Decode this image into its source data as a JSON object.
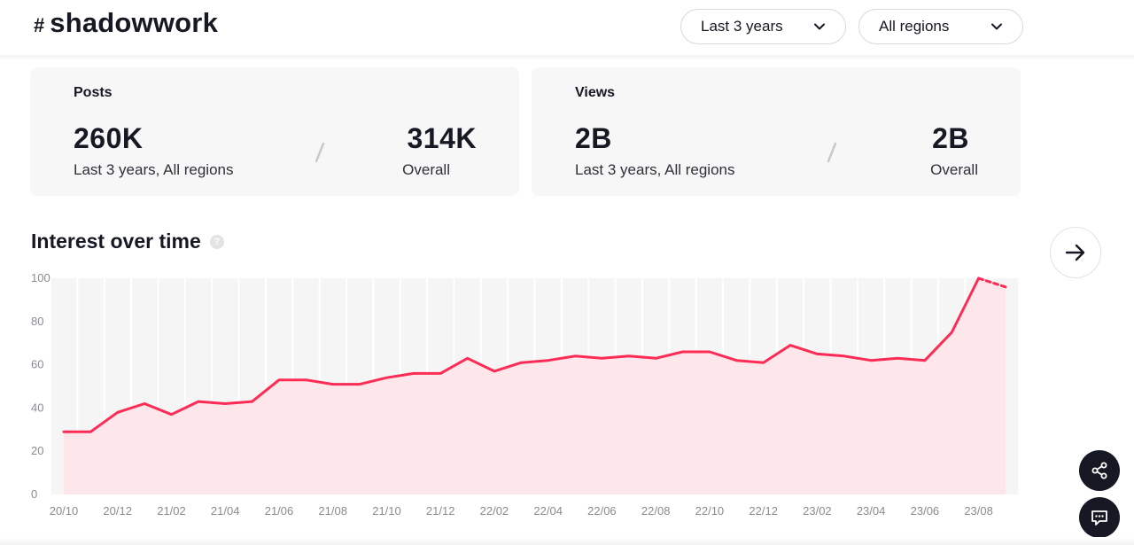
{
  "header": {
    "hash_symbol": "#",
    "hashtag": "shadowwork",
    "period_select": "Last 3 years",
    "region_select": "All regions"
  },
  "cards": {
    "posts": {
      "label": "Posts",
      "period_value": "260K",
      "period_caption": "Last 3 years, All regions",
      "overall_value": "314K",
      "overall_caption": "Overall"
    },
    "views": {
      "label": "Views",
      "period_value": "2B",
      "period_caption": "Last 3 years, All regions",
      "overall_value": "2B",
      "overall_caption": "Overall"
    }
  },
  "interest": {
    "title": "Interest over time",
    "help_glyph": "?"
  },
  "colors": {
    "accent_line": "#fe2c55",
    "area_fill": "#fde7eb",
    "column_bg": "#f5f5f6",
    "dark": "#161823"
  },
  "icons": {
    "next": "arrow-right-icon",
    "share": "share-icon",
    "chat": "chat-icon",
    "dropdown": "chevron-down-icon"
  },
  "chart_data": {
    "type": "area",
    "title": "Interest over time",
    "xlabel": "",
    "ylabel": "",
    "ylim": [
      0,
      100
    ],
    "yticks": [
      0,
      20,
      40,
      60,
      80,
      100
    ],
    "x": [
      "20/10",
      "20/11",
      "20/12",
      "21/01",
      "21/02",
      "21/03",
      "21/04",
      "21/05",
      "21/06",
      "21/07",
      "21/08",
      "21/09",
      "21/10",
      "21/11",
      "21/12",
      "22/01",
      "22/02",
      "22/03",
      "22/04",
      "22/05",
      "22/06",
      "22/07",
      "22/08",
      "22/09",
      "22/10",
      "22/11",
      "22/12",
      "23/01",
      "23/02",
      "23/03",
      "23/04",
      "23/05",
      "23/06",
      "23/07",
      "23/08",
      "23/09"
    ],
    "xticks": [
      "20/10",
      "20/12",
      "21/02",
      "21/04",
      "21/06",
      "21/08",
      "21/10",
      "21/12",
      "22/02",
      "22/04",
      "22/06",
      "22/08",
      "22/10",
      "22/12",
      "23/02",
      "23/04",
      "23/06",
      "23/08"
    ],
    "series": [
      {
        "name": "Interest",
        "values": [
          29,
          29,
          38,
          42,
          37,
          43,
          42,
          43,
          53,
          53,
          51,
          51,
          54,
          56,
          56,
          63,
          57,
          61,
          62,
          64,
          63,
          64,
          63,
          66,
          66,
          62,
          61,
          69,
          65,
          64,
          62,
          63,
          62,
          75,
          100,
          96
        ],
        "last_value_dashed": true
      }
    ]
  }
}
